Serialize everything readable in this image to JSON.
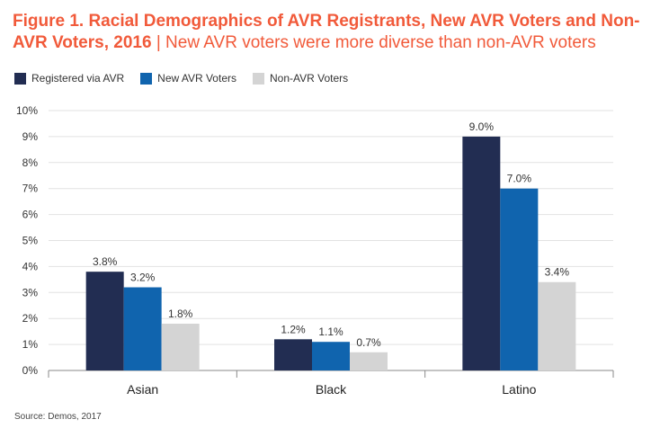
{
  "title": {
    "bold": "Figure 1. Racial Demographics of AVR Registrants, New AVR Voters and Non-AVR Voters, 2016",
    "separator": " | ",
    "subtitle": "New AVR voters were more diverse than non-AVR voters"
  },
  "source": "Source: Demos, 2017",
  "colors": {
    "title": "#f15a3a",
    "series": [
      "#222d52",
      "#1064ae",
      "#d4d4d4"
    ]
  },
  "chart_data": {
    "type": "bar",
    "categories": [
      "Asian",
      "Black",
      "Latino"
    ],
    "series": [
      {
        "name": "Registered via AVR",
        "values": [
          3.8,
          1.2,
          9.0
        ],
        "labels": [
          "3.8%",
          "1.2%",
          "9.0%"
        ]
      },
      {
        "name": "New AVR Voters",
        "values": [
          3.2,
          1.1,
          7.0
        ],
        "labels": [
          "3.2%",
          "1.1%",
          "7.0%"
        ]
      },
      {
        "name": "Non-AVR Voters",
        "values": [
          1.8,
          0.7,
          3.4
        ],
        "labels": [
          "1.8%",
          "0.7%",
          "3.4%"
        ]
      }
    ],
    "ylim": [
      0,
      10
    ],
    "yticks": [
      "0%",
      "1%",
      "2%",
      "3%",
      "4%",
      "5%",
      "6%",
      "7%",
      "8%",
      "9%",
      "10%"
    ],
    "grid": true,
    "legend": "top-left"
  }
}
